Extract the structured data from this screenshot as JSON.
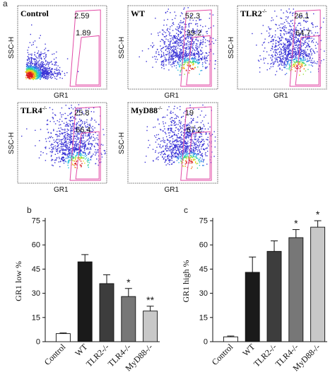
{
  "figure": {
    "panel_labels": [
      "a",
      "b",
      "c"
    ]
  },
  "flow_plots": [
    {
      "title": "Control",
      "title_sup": "",
      "gate_low": "2.59",
      "gate_high": "1.89",
      "y_axis": "SSC-H",
      "x_axis": "GR1",
      "cluster": "low-left"
    },
    {
      "title": "WT",
      "title_sup": "",
      "gate_low": "52.3",
      "gate_high": "39.2",
      "y_axis": "SSC-H",
      "x_axis": "GR1",
      "cluster": "right"
    },
    {
      "title": "TLR2",
      "title_sup": "-/-",
      "gate_low": "26.1",
      "gate_high": "64.7",
      "y_axis": "SSC-H",
      "x_axis": "GR1",
      "cluster": "right"
    },
    {
      "title": "TLR4",
      "title_sup": "-/-",
      "gate_low": "25.8",
      "gate_high": "66.4",
      "y_axis": "SSC-H",
      "x_axis": "GR1",
      "cluster": "right"
    },
    {
      "title": "MyD88",
      "title_sup": "-/-",
      "gate_low": "19",
      "gate_high": "67.2",
      "y_axis": "SSC-H",
      "x_axis": "GR1",
      "cluster": "right"
    }
  ],
  "chart_data": [
    {
      "type": "bar",
      "panel": "b",
      "ylabel": "GR1 low %",
      "xlabel": "",
      "ylim": [
        0,
        75
      ],
      "yticks": [
        0,
        15,
        30,
        45,
        60,
        75
      ],
      "categories": [
        "Control",
        "WT",
        "TLR2-/-",
        "TLR4-/-",
        "MyD88-/-"
      ],
      "values": [
        5,
        49.5,
        36,
        28,
        19
      ],
      "errors": [
        0.4,
        4.5,
        5.5,
        5,
        3
      ],
      "significance": [
        "",
        "",
        "",
        "*",
        "**"
      ],
      "colors": [
        "#ffffff",
        "#1a1a1a",
        "#3d3d3d",
        "#777777",
        "#c8c8c8"
      ]
    },
    {
      "type": "bar",
      "panel": "c",
      "ylabel": "GR1 high %",
      "xlabel": "",
      "ylim": [
        0,
        75
      ],
      "yticks": [
        0,
        15,
        30,
        45,
        60,
        75
      ],
      "categories": [
        "Control",
        "WT",
        "TLR2-/-",
        "TLR4-/-",
        "MyD88-/-"
      ],
      "values": [
        3,
        43,
        56,
        64.5,
        71
      ],
      "errors": [
        0.5,
        9.5,
        6.5,
        5,
        4
      ],
      "significance": [
        "",
        "",
        "",
        "*",
        "*"
      ],
      "colors": [
        "#ffffff",
        "#1a1a1a",
        "#3d3d3d",
        "#777777",
        "#c8c8c8"
      ]
    }
  ]
}
